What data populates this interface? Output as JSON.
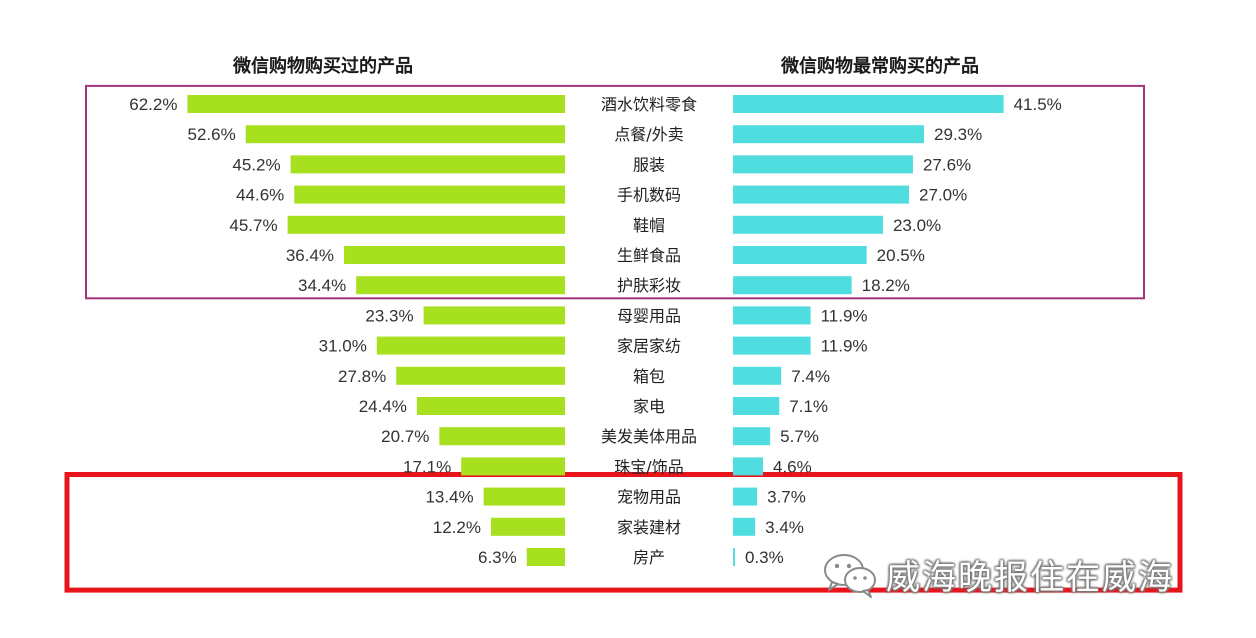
{
  "chart_data": {
    "type": "bar",
    "orientation": "horizontal-butterfly",
    "categories": [
      "酒水饮料零食",
      "点餐/外卖",
      "服装",
      "手机数码",
      "鞋帽",
      "生鲜食品",
      "护肤彩妆",
      "母婴用品",
      "家居家纺",
      "箱包",
      "家电",
      "美发美体用品",
      "珠宝/饰品",
      "宠物用品",
      "家装建材",
      "房产"
    ],
    "series": [
      {
        "name": "微信购物购买过的产品",
        "values": [
          62.2,
          52.6,
          45.2,
          44.6,
          45.7,
          36.4,
          34.4,
          23.3,
          31.0,
          27.8,
          24.4,
          20.7,
          17.1,
          13.4,
          12.2,
          6.3
        ],
        "labels": [
          "62.2%",
          "52.6%",
          "45.2%",
          "44.6%",
          "45.7%",
          "36.4%",
          "34.4%",
          "23.3%",
          "31.0%",
          "27.8%",
          "24.4%",
          "20.7%",
          "17.1%",
          "13.4%",
          "12.2%",
          "6.3%"
        ],
        "color": "#a6e01e"
      },
      {
        "name": "微信购物最常购买的产品",
        "values": [
          41.5,
          29.3,
          27.6,
          27.0,
          23.0,
          20.5,
          18.2,
          11.9,
          11.9,
          7.4,
          7.1,
          5.7,
          4.6,
          3.7,
          3.4,
          0.3
        ],
        "labels": [
          "41.5%",
          "29.3%",
          "27.6%",
          "27.0%",
          "23.0%",
          "20.5%",
          "18.2%",
          "11.9%",
          "11.9%",
          "7.4%",
          "7.1%",
          "5.7%",
          "4.6%",
          "3.7%",
          "3.4%",
          "0.3%"
        ],
        "color": "#4fdde0"
      }
    ],
    "highlight_groups": [
      {
        "from_category": "酒水饮料零食",
        "to_category": "护肤彩妆",
        "color": "#a0357d"
      },
      {
        "from_category": "宠物用品",
        "to_category": "房产",
        "color": "#e8141b"
      }
    ]
  },
  "watermark": {
    "text": "威海晚报住在威海",
    "icon": "wechat-icon"
  }
}
